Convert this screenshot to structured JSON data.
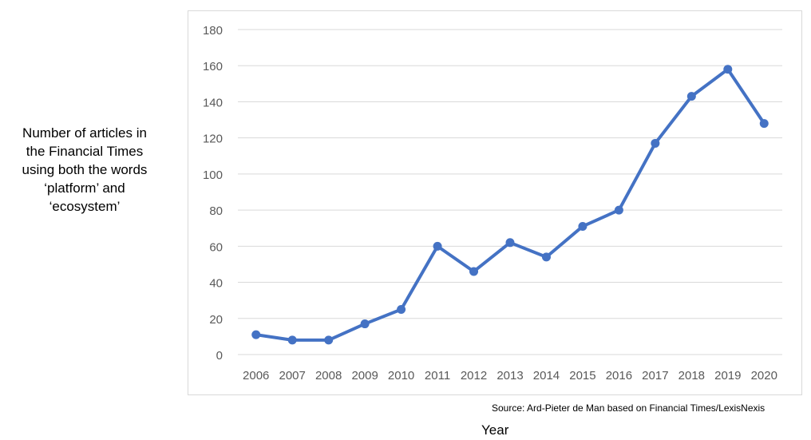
{
  "chart_data": {
    "type": "line",
    "ylabel_lines": [
      "Number of articles in",
      "the Financial Times",
      "using both the words",
      "‘platform’ and",
      "‘ecosystem’"
    ],
    "xlabel": "Year",
    "source": "Source: Ard-Pieter de Man based on Financial Times/LexisNexis",
    "categories": [
      "2006",
      "2007",
      "2008",
      "2009",
      "2010",
      "2011",
      "2012",
      "2013",
      "2014",
      "2015",
      "2016",
      "2017",
      "2018",
      "2019",
      "2020"
    ],
    "values": [
      11,
      8,
      8,
      17,
      25,
      60,
      46,
      62,
      54,
      71,
      80,
      117,
      143,
      158,
      128
    ],
    "ylim": [
      0,
      180
    ],
    "yticks": [
      "0",
      "20",
      "40",
      "60",
      "80",
      "100",
      "120",
      "140",
      "160",
      "180"
    ],
    "grid": true,
    "legend": "none",
    "line_color": "#4472C4",
    "grid_color": "#d9d9d9",
    "tick_color": "#595959"
  }
}
